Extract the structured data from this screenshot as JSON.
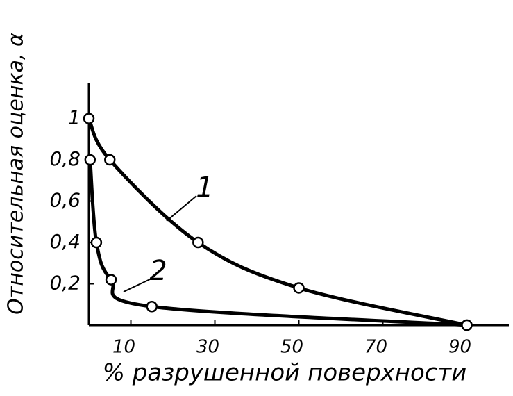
{
  "chart_data": {
    "type": "line",
    "xlabel": "% разрушенной поверхности",
    "ylabel": "Относительная оценка, α",
    "xlim": [
      0,
      100
    ],
    "ylim": [
      0,
      1.17
    ],
    "xticks": [
      10,
      30,
      50,
      70,
      90
    ],
    "yticks": [
      {
        "value": 0.2,
        "label": "0,2"
      },
      {
        "value": 0.4,
        "label": "0,4"
      },
      {
        "value": 0.6,
        "label": "0,6"
      },
      {
        "value": 0.8,
        "label": "0,8"
      },
      1
    ],
    "series": [
      {
        "name": "1",
        "color": "#000000",
        "x": [
          0,
          5,
          26,
          50,
          90
        ],
        "values": [
          1,
          0.8,
          0.4,
          0.18,
          0
        ]
      },
      {
        "name": "2",
        "color": "#000000",
        "x": [
          0.3,
          1.8,
          5.3,
          15,
          90
        ],
        "values": [
          0.8,
          0.4,
          0.22,
          0.09,
          0
        ]
      }
    ]
  }
}
